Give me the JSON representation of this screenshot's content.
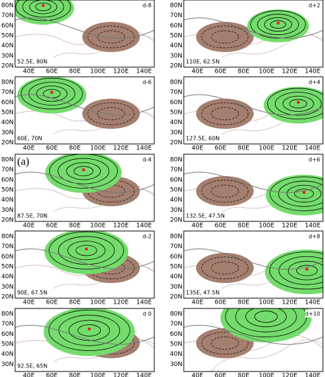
{
  "panel_letter": "(a)",
  "lat_ticks": [
    "80N",
    "70N",
    "60N",
    "50N",
    "40N",
    "30N",
    "20N"
  ],
  "lon_ticks": [
    "40E",
    "60E",
    "80E",
    "100E",
    "120E",
    "140E"
  ],
  "panels": [
    {
      "lag": "d-8",
      "location": "52.5E, 80N"
    },
    {
      "lag": "d-6",
      "location": "60E, 70N"
    },
    {
      "lag": "d-4",
      "location": "87.5E, 70N"
    },
    {
      "lag": "d-2",
      "location": "90E, 67.5N"
    },
    {
      "lag": "d 0",
      "location": "92.5E, 65N"
    },
    {
      "lag": "d+2",
      "location": "110E, 62.5N"
    },
    {
      "lag": "d+4",
      "location": "127.5E, 60N"
    },
    {
      "lag": "d+6",
      "location": "132.5E, 47.5N"
    },
    {
      "lag": "d+8",
      "location": "135E, 47.5N"
    },
    {
      "lag": "d+10"
    }
  ]
}
